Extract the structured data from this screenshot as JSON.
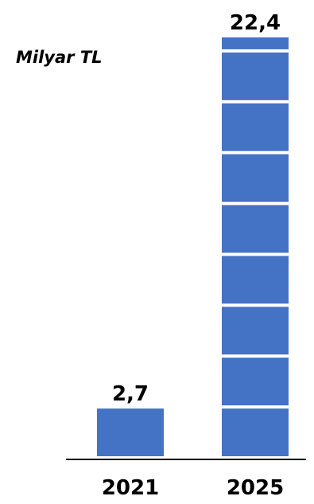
{
  "chart_data": {
    "type": "bar",
    "unit_label": "Milyar TL",
    "categories": [
      "2021",
      "2025"
    ],
    "values": [
      2.7,
      22.4
    ],
    "value_labels": [
      "2,7",
      "22,4"
    ],
    "segment_size": 2.7,
    "bar_color": "#4472C4",
    "axis_color": "#000000",
    "grid": false,
    "legend": "none"
  }
}
